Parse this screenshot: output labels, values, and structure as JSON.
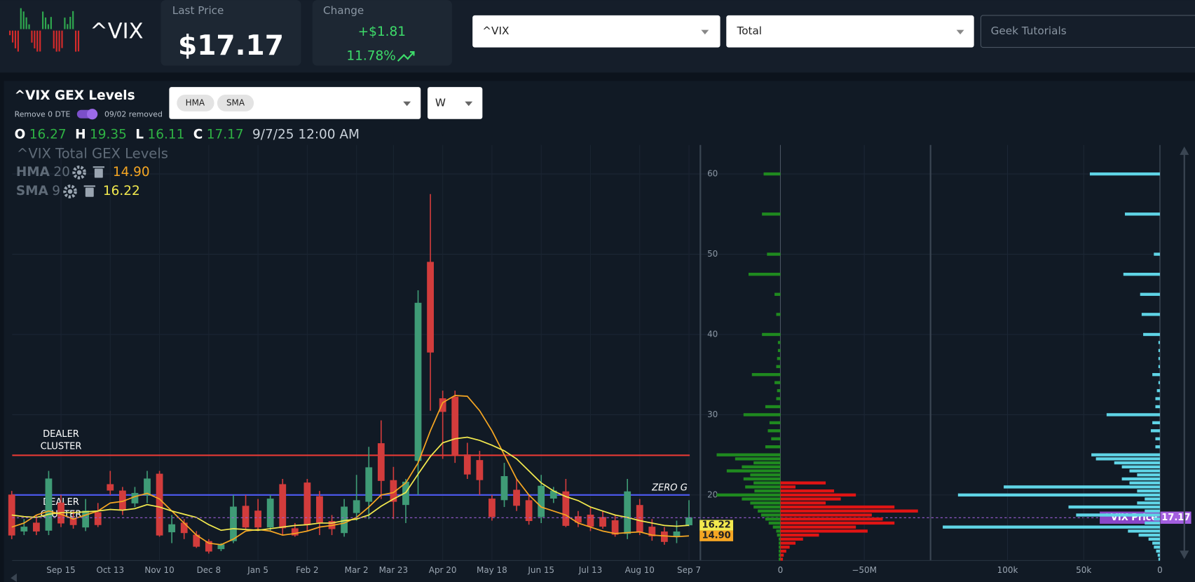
{
  "header": {
    "symbol": "^VIX",
    "last_price_label": "Last Price",
    "last_price": "$17.17",
    "change_label": "Change",
    "change": "+$1.81",
    "change_pct": "11.78%",
    "selects": [
      "^VIX",
      "Total"
    ],
    "search_placeholder": "Geek Tutorials"
  },
  "panel": {
    "title": "^VIX GEX Levels",
    "toggle_label": "Remove 0 DTE",
    "toggle_note": "09/02 removed",
    "indicators": [
      "HMA",
      "SMA"
    ],
    "interval": "W",
    "ohlc_letters": [
      "O",
      "H",
      "L",
      "C"
    ],
    "date": "9/7/25 12:00 AM",
    "legend_title": "^VIX Total GEX Levels",
    "price_tag": "^VIX Price"
  },
  "chart_data": [
    {
      "type": "candlestick",
      "categories": [
        null,
        null,
        null,
        null,
        "Sep 15",
        null,
        null,
        null,
        "Oct 13",
        null,
        null,
        null,
        "Nov 10",
        null,
        null,
        null,
        "Dec 8",
        null,
        null,
        null,
        "Jan 5",
        null,
        null,
        null,
        "Feb 2",
        null,
        null,
        null,
        "Mar 2",
        null,
        null,
        "Mar 23",
        null,
        null,
        null,
        "Apr 20",
        null,
        null,
        null,
        "May 18",
        null,
        null,
        null,
        "Jun 15",
        null,
        null,
        null,
        "Jul 13",
        null,
        null,
        null,
        "Aug 10",
        null,
        null,
        null,
        "Sep 7"
      ],
      "open": [
        20,
        15.5,
        16.5,
        15.6,
        19,
        17,
        16,
        17.8,
        21.3,
        20.5,
        19,
        20,
        22.6,
        15.4,
        16.5,
        15,
        14.2,
        13.3,
        14.3,
        18.6,
        18,
        16,
        21.3,
        15.8,
        21.5,
        19.8,
        16.7,
        15.3,
        17.8,
        19.2,
        26.4,
        21.8,
        18.8,
        24.3,
        49,
        32,
        32.2,
        25,
        24.3,
        19.5,
        19.4,
        20.6,
        19.3,
        17.3,
        19.6,
        20.4,
        17.3,
        17.5,
        17.2,
        16.8,
        15.2,
        18.7,
        16,
        15.4,
        14.9,
        16.27
      ],
      "high": [
        20.5,
        17,
        17.5,
        23,
        20,
        18,
        19.5,
        19,
        23,
        21,
        21,
        23,
        23,
        17.5,
        17,
        15.5,
        14.5,
        14,
        20,
        20,
        19.5,
        20,
        22,
        16.5,
        22,
        20.5,
        17.5,
        19.5,
        22.5,
        26,
        29.3,
        23.5,
        22,
        45.5,
        57.5,
        33,
        33,
        26.5,
        25.5,
        20,
        24,
        22,
        20,
        22.5,
        21,
        22,
        18,
        18.5,
        18,
        17.5,
        22,
        19.5,
        17,
        16,
        16.8,
        19.35
      ],
      "low": [
        14.5,
        15,
        15,
        15,
        16,
        15.8,
        15.5,
        16,
        20,
        17.5,
        18.5,
        19,
        14.8,
        14,
        14.5,
        13.4,
        12.7,
        13,
        14,
        15.8,
        15.5,
        15.5,
        15,
        14.8,
        15.5,
        15,
        15,
        14.8,
        16.8,
        17,
        19.5,
        17,
        16.5,
        20,
        30.5,
        24.5,
        24,
        22,
        20,
        16.8,
        18.5,
        18,
        16.3,
        16.5,
        19,
        16,
        16,
        15.5,
        15.8,
        14.8,
        14.5,
        15,
        14.3,
        13.8,
        14,
        16.11
      ],
      "close": [
        15,
        16,
        15.5,
        22,
        16.5,
        16.3,
        18,
        16.3,
        20.6,
        18.2,
        20.2,
        22,
        15,
        16.3,
        15.3,
        13.6,
        13,
        13.8,
        18.5,
        16,
        16,
        19.5,
        15.9,
        15,
        16.3,
        16.6,
        15.8,
        18.5,
        19.3,
        23.4,
        21.8,
        19.2,
        21.6,
        43.9,
        37.8,
        30.4,
        25,
        22.6,
        21.9,
        17.3,
        22.3,
        18.7,
        16.8,
        21.1,
        20.5,
        16.2,
        16.6,
        16.1,
        16.1,
        15.1,
        20.4,
        15.4,
        14.9,
        14.2,
        15.4,
        17.17
      ],
      "ylim": [
        11.83,
        63.61
      ],
      "yticks": [
        20,
        30,
        40,
        50,
        60
      ],
      "grid": true,
      "up_color": "#3f9b76",
      "down_color": "#d23c3c",
      "series": [
        {
          "name": "HMA",
          "period": 20,
          "legend_value": "14.90",
          "color": "#f5a623",
          "values": [
            16,
            16.5,
            17.5,
            18,
            17.6,
            17,
            17.5,
            18,
            19,
            19.2,
            19.8,
            20.2,
            19.5,
            18,
            16.5,
            15,
            14,
            13.8,
            14.5,
            15.5,
            15.7,
            15.5,
            15,
            15.2,
            15.5,
            16,
            16.2,
            16.5,
            17.2,
            18.5,
            20,
            20.3,
            21.5,
            24,
            28,
            31.5,
            32.4,
            32.3,
            30.5,
            28,
            25,
            22,
            20,
            18.5,
            18,
            17.5,
            16.5,
            16,
            15.5,
            15.2,
            15.3,
            15.4,
            15,
            14.9,
            14.8,
            14.9
          ]
        },
        {
          "name": "SMA",
          "period": 9,
          "legend_value": "16.22",
          "color": "#f2e94e",
          "values": [
            17.5,
            17.3,
            17.2,
            17.6,
            17.8,
            17.8,
            17.9,
            18,
            18.2,
            18.1,
            18.3,
            18.8,
            18.5,
            18,
            17.6,
            17.2,
            16.3,
            15.6,
            15.8,
            15.7,
            15.6,
            15.8,
            16,
            16.2,
            16.3,
            16.5,
            16.5,
            16.8,
            17,
            17.5,
            18.6,
            19.5,
            20.3,
            22.6,
            24.8,
            26.5,
            27,
            27.2,
            26.8,
            26.2,
            25.5,
            24.5,
            23,
            21.5,
            20.5,
            19.8,
            19.3,
            18.5,
            18,
            17.5,
            17.2,
            16.8,
            16.5,
            16.2,
            16.1,
            16.22
          ]
        }
      ],
      "hlines": [
        {
          "label": "DEALER CLUSTER",
          "value": 24.94,
          "color": "#e53935"
        },
        {
          "label": "ZERO G",
          "value": 20,
          "color": "#4b57e8"
        }
      ],
      "annotations": [
        {
          "text": "DEALER CLUSTER",
          "value": 17.6
        }
      ],
      "price_line_color": "#9c5fd6"
    },
    {
      "type": "hbar",
      "y": [
        60,
        55,
        50,
        47.5,
        45,
        42.5,
        40,
        39,
        38,
        37,
        36,
        35,
        34,
        33,
        32,
        31,
        30,
        29,
        28,
        27,
        26,
        25,
        24.5,
        24,
        23.5,
        23,
        22.5,
        22,
        21.5,
        21,
        20.5,
        20,
        19.5,
        19,
        18.5,
        18,
        17.5,
        17,
        16.5,
        16,
        15.5,
        15,
        14.5,
        14,
        13.5,
        13,
        12.5,
        12
      ],
      "ylim": [
        11.83,
        63.61
      ],
      "series": [
        {
          "color": "#1f8a1f",
          "values": [
            10000000.0,
            11000000.0,
            8000000.0,
            19000000.0,
            3500000.0,
            2500000.0,
            11000000.0,
            1500000.0,
            1500000.0,
            2000000.0,
            2500000.0,
            17000000.0,
            3500000.0,
            2000000.0,
            2500000.0,
            9000000.0,
            22000000.0,
            6500000.0,
            7500000.0,
            5500000.0,
            9000000.0,
            38000000.0,
            27000000.0,
            16000000.0,
            23000000.0,
            32000000.0,
            18000000.0,
            22000000.0,
            16000000.0,
            21000000.0,
            15500000.0,
            38000000.0,
            23000000.0,
            18000000.0,
            16000000.0,
            13500000.0,
            11500000.0,
            9000000.0,
            7000000.0,
            4500000.0,
            2500000.0,
            2000000.0,
            1000000.0,
            1000000.0,
            1000000.0,
            1000000.0,
            1000000.0,
            1000000.0
          ]
        },
        {
          "color": "#e01414",
          "values": [
            0,
            0,
            0,
            0,
            0,
            0,
            0,
            0,
            0,
            0,
            0,
            0,
            0,
            0,
            0,
            0,
            0,
            0,
            0,
            0,
            0,
            0,
            0,
            0,
            0,
            0,
            0,
            0,
            -27000000.0,
            -9000000.0,
            -32000000.0,
            -45000000.0,
            -36000000.0,
            -27000000.0,
            -68000000.0,
            -82000000.0,
            -54500000.0,
            -61000000.0,
            -68000000.0,
            -45000000.0,
            -52000000.0,
            -23000000.0,
            -13500000.0,
            -9000000.0,
            -5500000.0,
            -3500000.0,
            -2000000.0,
            -1500000.0
          ]
        }
      ],
      "xlim": [
        47700000,
        -89500000
      ],
      "xticks": [
        0,
        {
          "value": -50000000,
          "label": "−50M"
        }
      ]
    },
    {
      "type": "hbar",
      "y": [
        60,
        55,
        50,
        47.5,
        45,
        42.5,
        40,
        39,
        38,
        37,
        36,
        35,
        34,
        33,
        32,
        31,
        30,
        29,
        28,
        27,
        26,
        25,
        24.5,
        24,
        23.5,
        23,
        22.5,
        22,
        21.5,
        21,
        20.5,
        20,
        19.5,
        19,
        18.5,
        18,
        17.5,
        17,
        16.5,
        16,
        15.5,
        15,
        14.5,
        14,
        13.5,
        13,
        12.5,
        12
      ],
      "ylim": [
        11.83,
        63.61
      ],
      "series": [
        {
          "color": "#5fd4e6",
          "values": [
            46000,
            23000,
            4000,
            24000,
            13000,
            12000,
            11000,
            1000,
            1000,
            1000,
            1000,
            5000,
            1000,
            2000,
            3000,
            3000,
            35000,
            5000,
            6000,
            3000,
            3000,
            45000,
            42000,
            30000,
            25000,
            20000,
            15000,
            25000,
            20000,
            102500,
            15000,
            132500,
            10000,
            15000,
            60000,
            10000,
            55000,
            4000,
            10000,
            142500,
            21000,
            14000,
            7500,
            5000,
            4000,
            2500,
            1500,
            1000
          ]
        }
      ],
      "xlim": [
        150500,
        0
      ],
      "xticks": [
        {
          "value": 100000,
          "label": "100k"
        },
        {
          "value": 50000,
          "label": "50k"
        },
        0
      ]
    }
  ]
}
